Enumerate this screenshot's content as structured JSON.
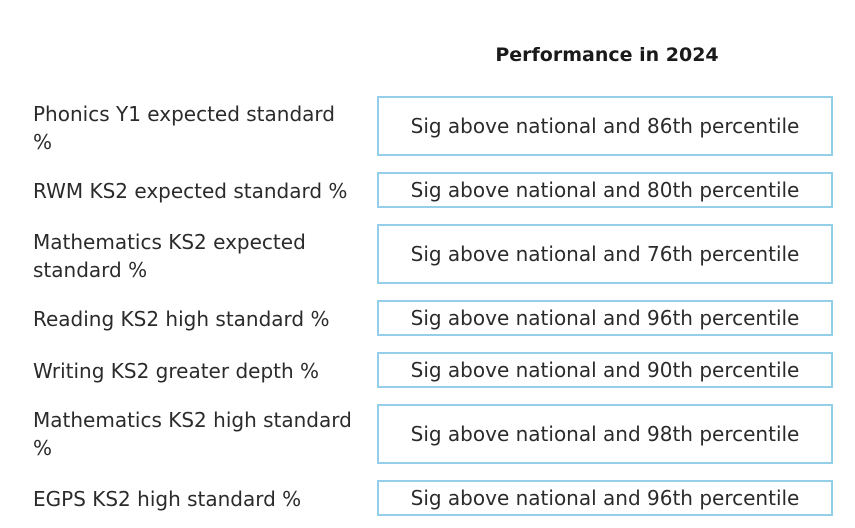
{
  "header": {
    "title": "Performance in 2024"
  },
  "rows": [
    {
      "label": "Phonics Y1 expected standard %",
      "value": "Sig above national and 86th percentile"
    },
    {
      "label": "RWM KS2 expected standard %",
      "value": "Sig above national and 80th percentile"
    },
    {
      "label": "Mathematics KS2 expected standard %",
      "value": "Sig above national and 76th percentile"
    },
    {
      "label": "Reading KS2 high standard %",
      "value": "Sig above national and 96th percentile"
    },
    {
      "label": "Writing KS2 greater depth %",
      "value": "Sig above national and 90th percentile"
    },
    {
      "label": "Mathematics KS2 high standard %",
      "value": "Sig above national and 98th percentile"
    },
    {
      "label": "EGPS KS2 high standard %",
      "value": "Sig above national and 96th percentile"
    }
  ]
}
